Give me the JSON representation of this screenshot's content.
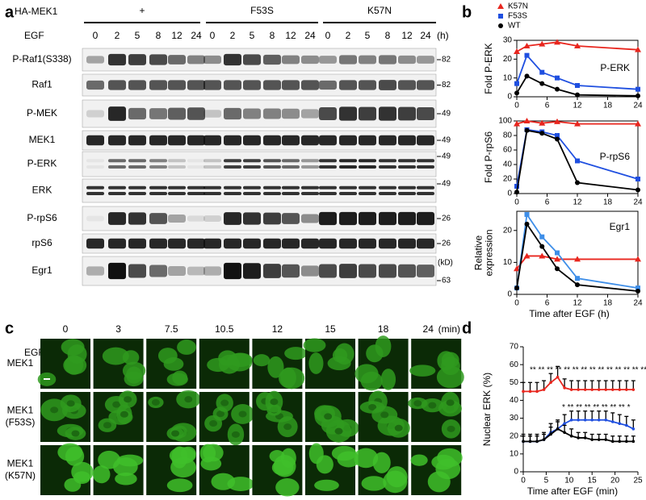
{
  "panel_labels": [
    "a",
    "b",
    "c",
    "d"
  ],
  "blot": {
    "construct": "HA-MEK1",
    "groups": [
      "+",
      "F53S",
      "K57N"
    ],
    "stimulus": "EGF",
    "times": [
      "0",
      "2",
      "5",
      "8",
      "12",
      "24"
    ],
    "unit": "(h)",
    "mw_unit": "(kD)",
    "rows": [
      {
        "label": "P-Raf1(S338)",
        "marker": "82"
      },
      {
        "label": "Raf1",
        "marker": "82"
      },
      {
        "label": "P-MEK",
        "marker": "49"
      },
      {
        "label": "MEK1",
        "marker": "49"
      },
      {
        "label": "P-ERK",
        "marker": "49"
      },
      {
        "label": "ERK",
        "marker": "49"
      },
      {
        "label": "P-rpS6",
        "marker": "26"
      },
      {
        "label": "rpS6",
        "marker": "26"
      },
      {
        "label": "Egr1",
        "marker": "63"
      }
    ]
  },
  "imaging": {
    "stimulus": "EGF",
    "times": [
      "0",
      "3",
      "7.5",
      "10.5",
      "12",
      "15",
      "18",
      "24"
    ],
    "unit": "(min)",
    "rows": [
      [
        "MEK1"
      ],
      [
        "MEK1",
        "(F53S)"
      ],
      [
        "MEK1",
        "(K57N)"
      ]
    ]
  },
  "chart_data": [
    {
      "type": "line",
      "ylabel": [
        "Fold P-ERK"
      ],
      "annotation": "P-ERK",
      "x": [
        0,
        2,
        5,
        8,
        12,
        24
      ],
      "xlim": [
        0,
        24
      ],
      "xticks": [
        0,
        6,
        12,
        18,
        24
      ],
      "ylim": [
        0,
        30
      ],
      "yticks": [
        0,
        10,
        20,
        30
      ],
      "series": [
        {
          "name": "K57N",
          "color": "#e8261e",
          "marker": "triangle",
          "values": [
            24,
            27,
            28,
            29,
            27,
            25
          ]
        },
        {
          "name": "F53S",
          "color": "#1f4fe0",
          "marker": "square",
          "values": [
            7,
            22,
            13,
            10,
            6,
            4
          ]
        },
        {
          "name": "WT",
          "color": "#000000",
          "marker": "circle",
          "values": [
            2,
            11,
            7,
            4,
            1,
            0.5
          ]
        }
      ]
    },
    {
      "type": "line",
      "ylabel": [
        "Fold P-rpS6"
      ],
      "annotation": "P-rpS6",
      "x": [
        0,
        2,
        5,
        8,
        12,
        24
      ],
      "xlim": [
        0,
        24
      ],
      "xticks": [
        0,
        6,
        12,
        18,
        24
      ],
      "ylim": [
        0,
        100
      ],
      "yticks": [
        0,
        20,
        40,
        60,
        80,
        100
      ],
      "series": [
        {
          "color": "#e8261e",
          "marker": "triangle",
          "values": [
            96,
            100,
            97,
            99,
            96,
            96
          ]
        },
        {
          "color": "#1f4fe0",
          "marker": "square",
          "values": [
            10,
            88,
            85,
            80,
            45,
            20
          ]
        },
        {
          "color": "#000000",
          "marker": "circle",
          "values": [
            2,
            87,
            83,
            75,
            15,
            5
          ]
        }
      ]
    },
    {
      "type": "line",
      "ylabel": [
        "Relative",
        "expression"
      ],
      "annotation": "Egr1",
      "xlabel": "Time after EGF (h)",
      "x": [
        0,
        2,
        5,
        8,
        12,
        24
      ],
      "xlim": [
        0,
        24
      ],
      "xticks": [
        0,
        6,
        12,
        18,
        24
      ],
      "ylim": [
        0,
        26
      ],
      "yticks": [
        0,
        10,
        20
      ],
      "series": [
        {
          "color": "#e8261e",
          "marker": "triangle",
          "values": [
            8,
            12,
            12,
            11,
            11,
            11
          ]
        },
        {
          "color": "#3e8ee8",
          "marker": "square",
          "values": [
            2,
            25,
            18,
            13,
            5,
            2
          ]
        },
        {
          "color": "#000000",
          "marker": "circle",
          "values": [
            2,
            22,
            15,
            8,
            3,
            1
          ]
        }
      ]
    },
    {
      "type": "errorline",
      "ylabel": [
        "Nuclear ERK (%)"
      ],
      "xlabel": "Time after EGF (min)",
      "x": [
        0,
        1.5,
        3,
        4.5,
        6,
        7.5,
        9,
        10.5,
        12,
        13.5,
        15,
        16.5,
        18,
        19.5,
        21,
        22.5,
        24
      ],
      "xlim": [
        0,
        25
      ],
      "xticks": [
        0,
        5,
        10,
        15,
        20,
        25
      ],
      "ylim": [
        0,
        70
      ],
      "yticks": [
        0,
        10,
        20,
        30,
        40,
        50,
        60,
        70
      ],
      "significance": [
        "** ** ** ** ** ** ** ** ** ** ** ** ** ** ** ** **",
        "* ** ** ** ** ** ** ** *"
      ],
      "series": [
        {
          "color": "#e8261e",
          "values": [
            45,
            45,
            45,
            46,
            50,
            53,
            47,
            46,
            46,
            46,
            46,
            46,
            46,
            46,
            46,
            46,
            46
          ],
          "errors": [
            5,
            5,
            5,
            5,
            5,
            6,
            5,
            5,
            5,
            5,
            5,
            5,
            5,
            5,
            5,
            5,
            5
          ]
        },
        {
          "color": "#1f4fe0",
          "values": [
            17,
            17,
            17,
            18,
            22,
            24,
            27,
            29,
            29,
            29,
            29,
            29,
            29,
            28,
            27,
            26,
            24
          ],
          "errors": [
            4,
            4,
            4,
            4,
            5,
            5,
            5,
            5,
            5,
            5,
            5,
            5,
            5,
            5,
            5,
            5,
            5
          ]
        },
        {
          "color": "#000000",
          "values": [
            17,
            17,
            17,
            18,
            21,
            24,
            22,
            20,
            19,
            19,
            18,
            18,
            18,
            17,
            17,
            17,
            17
          ],
          "errors": [
            3,
            3,
            3,
            3,
            4,
            4,
            4,
            4,
            3,
            3,
            3,
            3,
            3,
            3,
            3,
            3,
            3
          ]
        }
      ]
    }
  ]
}
